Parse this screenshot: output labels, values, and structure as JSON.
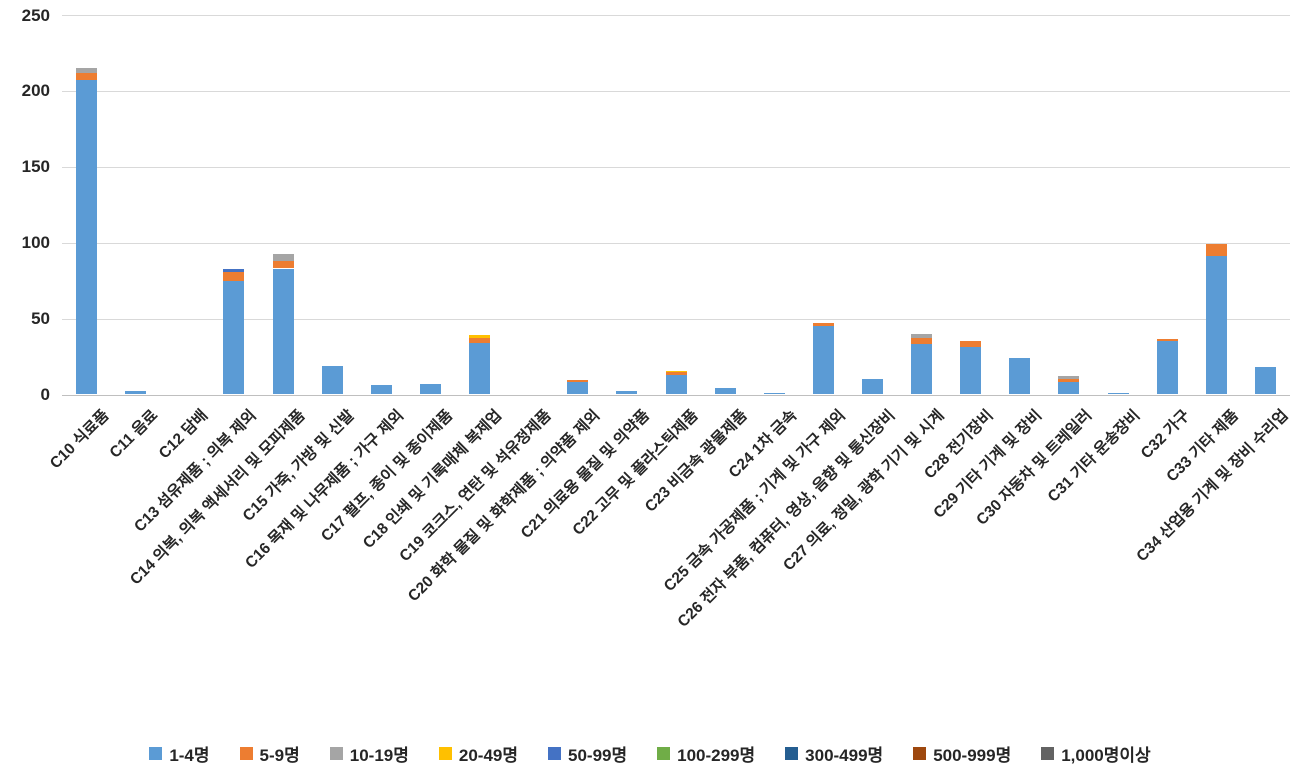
{
  "chart_data": {
    "type": "bar",
    "stacked": true,
    "title": "",
    "xlabel": "",
    "ylabel": "",
    "ylim": [
      0,
      250
    ],
    "y_ticks": [
      0,
      50,
      100,
      150,
      200,
      250
    ],
    "grid": true,
    "legend_position": "bottom",
    "categories": [
      "C10 식료품",
      "C11 음료",
      "C12 담배",
      "C13 섬유제품 ; 의복 제외",
      "C14 의복, 의복 액세서리 및 모피제품",
      "C15 가죽, 가방 및 신발",
      "C16 목재 및 나무제품 ; 가구 제외",
      "C17 펄프, 종이 및 종이제품",
      "C18 인쇄 및 기록매체 복제업",
      "C19 코크스, 연탄 및 석유정제품",
      "C20 화학 물질 및 화학제품 ; 의약품 제외",
      "C21 의료용 물질 및 의약품",
      "C22 고무 및 플라스틱제품",
      "C23 비금속 광물제품",
      "C24 1차 금속",
      "C25 금속 가공제품 ; 기계 및 가구 제외",
      "C26 전자 부품, 컴퓨터, 영상, 음향 및 통신장비",
      "C27 의료, 정밀, 광학 기기 및 시계",
      "C28 전기장비",
      "C29 기타 기계 및 장비",
      "C30 자동차 및 트레일러",
      "C31 기타 운송장비",
      "C32 가구",
      "C33 기타 제품",
      "C34 산업용 기계 및 장비 수리업"
    ],
    "series": [
      {
        "name": "1-4명",
        "color": "#5B9BD5",
        "values": [
          207,
          2,
          0,
          75,
          83,
          19,
          6,
          7,
          34,
          0,
          8,
          2,
          13,
          4,
          1,
          45,
          10,
          33,
          31,
          24,
          8,
          1,
          35,
          91,
          18
        ]
      },
      {
        "name": "5-9명",
        "color": "#ED7D31",
        "values": [
          5,
          0,
          0,
          6,
          5,
          0,
          0,
          0,
          3,
          0,
          1.5,
          0,
          1.5,
          0,
          0,
          2,
          0,
          4,
          4,
          0,
          2,
          0,
          1.5,
          8,
          0
        ]
      },
      {
        "name": "10-19명",
        "color": "#A5A5A5",
        "values": [
          3,
          0,
          0,
          0,
          4.5,
          0,
          0,
          0,
          0,
          0,
          0,
          0,
          0,
          0,
          0,
          0,
          0,
          3,
          0,
          0,
          2,
          0,
          0,
          0,
          0
        ]
      },
      {
        "name": "20-49명",
        "color": "#FFC000",
        "values": [
          0,
          0,
          0,
          0,
          0,
          0,
          0,
          0,
          2,
          0,
          0,
          0,
          1,
          0,
          0,
          0,
          0,
          0,
          0,
          0,
          0,
          0,
          0,
          0,
          0
        ]
      },
      {
        "name": "50-99명",
        "color": "#4472C4",
        "values": [
          0,
          0,
          0,
          2,
          0,
          0,
          0,
          0,
          0,
          0,
          0,
          0,
          0,
          0,
          0,
          0,
          0,
          0,
          0,
          0,
          0,
          0,
          0,
          0,
          0
        ]
      },
      {
        "name": "100-299명",
        "color": "#70AD47",
        "values": [
          0,
          0,
          0,
          0,
          0,
          0,
          0,
          0,
          0,
          0,
          0,
          0,
          0,
          0,
          0,
          0,
          0,
          0,
          0,
          0,
          0,
          0,
          0,
          0,
          0
        ]
      },
      {
        "name": "300-499명",
        "color": "#255E91",
        "values": [
          0,
          0,
          0,
          0,
          0,
          0,
          0,
          0,
          0,
          0,
          0,
          0,
          0,
          0,
          0,
          0,
          0,
          0,
          0,
          0,
          0,
          0,
          0,
          0,
          0
        ]
      },
      {
        "name": "500-999명",
        "color": "#9E480E",
        "values": [
          0,
          0,
          0,
          0,
          0,
          0,
          0,
          0,
          0,
          0,
          0,
          0,
          0,
          0,
          0,
          0,
          0,
          0,
          0,
          0,
          0,
          0,
          0,
          0,
          0
        ]
      },
      {
        "name": "1,000명이상",
        "color": "#636363",
        "values": [
          0,
          0,
          0,
          0,
          0,
          0,
          0,
          0,
          0,
          0,
          0,
          0,
          0,
          0,
          0,
          0,
          0,
          0,
          0,
          0,
          0,
          0,
          0,
          0,
          0
        ]
      }
    ]
  },
  "layout_colors": {
    "gridline": "#D9D9D9",
    "axis_line": "#BFBFBF",
    "text": "#262626",
    "background": "#FFFFFF"
  }
}
